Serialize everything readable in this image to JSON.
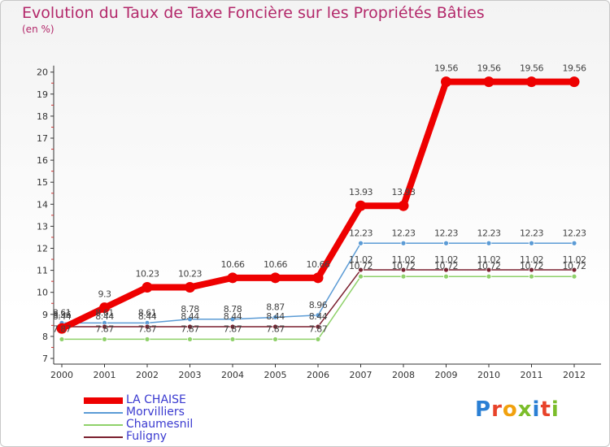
{
  "header": {
    "title": "Evolution du Taux de Taxe Foncière sur les Propriétés Bâties",
    "unit": "(en %)"
  },
  "logo": {
    "text": "Proxiti",
    "colors": [
      "#2a7fd4",
      "#e8432a",
      "#f1a10e",
      "#7bbd2a",
      "#2a7fd4",
      "#e8432a",
      "#7bbd2a"
    ]
  },
  "chart_data": {
    "type": "line",
    "title": "Evolution du Taux de Taxe Foncière sur les Propriétés Bâties",
    "ylabel": "(en %)",
    "xlabel": "",
    "ylim": [
      7,
      20
    ],
    "yticks": [
      7,
      8,
      9,
      10,
      11,
      12,
      13,
      14,
      15,
      16,
      17,
      18,
      19,
      20
    ],
    "grid": false,
    "legend_position": "bottom-left",
    "x": [
      "2000",
      "2001",
      "2002",
      "2003",
      "2004",
      "2005",
      "2006",
      "2007",
      "2008",
      "2009",
      "2010",
      "2011",
      "2012"
    ],
    "series": [
      {
        "name": "LA CHAISE",
        "color": "#ee0000",
        "values": [
          8.36,
          9.3,
          10.23,
          10.23,
          10.66,
          10.66,
          10.66,
          13.93,
          13.93,
          19.56,
          19.56,
          19.56,
          19.56
        ],
        "labels": [
          "8.36",
          "9.3",
          "10.23",
          "10.23",
          "10.66",
          "10.66",
          "10.66",
          "13.93",
          "13.93",
          "19.56",
          "19.56",
          "19.56",
          "19.56"
        ]
      },
      {
        "name": "Morvilliers",
        "color": "#5b9bd5",
        "values": [
          8.61,
          8.61,
          8.61,
          8.78,
          8.78,
          8.87,
          8.96,
          12.23,
          12.23,
          12.23,
          12.23,
          12.23,
          12.23
        ],
        "labels": [
          "8.61",
          "8.61",
          "8.61",
          "8.78",
          "8.78",
          "8.87",
          "8.96",
          "12.23",
          "12.23",
          "12.23",
          "12.23",
          "12.23",
          "12.23"
        ]
      },
      {
        "name": "Chaumesnil",
        "color": "#8fd16a",
        "values": [
          7.87,
          7.87,
          7.87,
          7.87,
          7.87,
          7.87,
          7.87,
          10.72,
          10.72,
          10.72,
          10.72,
          10.72,
          10.72
        ],
        "labels": [
          "7.87",
          "7.87",
          "7.87",
          "7.87",
          "7.87",
          "7.87",
          "7.87",
          "10.72",
          "10.72",
          "10.72",
          "10.72",
          "10.72",
          "10.72"
        ]
      },
      {
        "name": "Fuligny",
        "color": "#7a1f2e",
        "values": [
          8.44,
          8.44,
          8.44,
          8.44,
          8.44,
          8.44,
          8.44,
          11.02,
          11.02,
          11.02,
          11.02,
          11.02,
          11.02
        ],
        "labels": [
          "8.44",
          "8.44",
          "8.44",
          "8.44",
          "8.44",
          "8.44",
          "8.44",
          "11.02",
          "11.02",
          "11.02",
          "11.02",
          "11.02",
          "11.02"
        ]
      }
    ]
  }
}
